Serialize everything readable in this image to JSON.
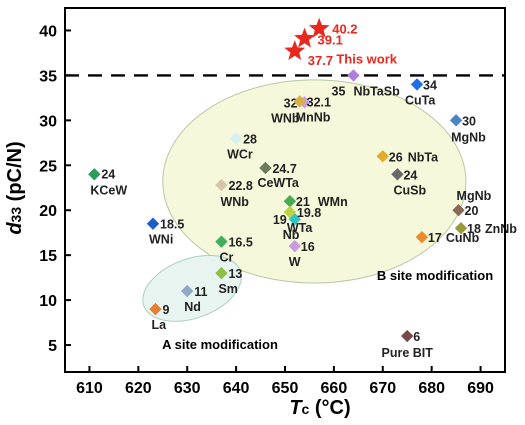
{
  "chart_data": {
    "type": "scatter",
    "x_axis": {
      "title_main": "T",
      "title_sub": "c",
      "title_unit": " (°C)",
      "range": [
        605,
        695
      ],
      "ticks": [
        610,
        620,
        630,
        640,
        650,
        660,
        670,
        680,
        690
      ]
    },
    "y_axis": {
      "title_main": "d",
      "title_sub": "33",
      "title_unit": " (pC/N)",
      "range": [
        2,
        42.5
      ],
      "ticks": [
        5,
        10,
        15,
        20,
        25,
        30,
        35,
        40
      ]
    },
    "reference_line": {
      "y": 35,
      "style": "dashed"
    },
    "regions": [
      {
        "label": "B site modification",
        "cx": 656,
        "cy": 23.2,
        "rx": 31,
        "ry": 11.3,
        "fill": "#f6f8dc",
        "stroke": "#b8c8a4"
      },
      {
        "label": "A site modification",
        "cx": 631,
        "cy": 11.3,
        "rx": 10.5,
        "ry": 3.3,
        "angle": -20,
        "fill": "#e8f4f0",
        "stroke": "#a9cfc4"
      }
    ],
    "points": [
      {
        "x": 611,
        "y": 24,
        "value": "24",
        "name": "KCeW",
        "color": "#2e9a5f"
      },
      {
        "x": 623,
        "y": 18.5,
        "value": "18.5",
        "name": "WNi",
        "color": "#1d5fc7"
      },
      {
        "x": 623.5,
        "y": 9,
        "value": "9",
        "name": "La",
        "color": "#e57f33"
      },
      {
        "x": 630,
        "y": 11,
        "value": "11",
        "name": "Nd",
        "color": "#8fa8c8"
      },
      {
        "x": 637,
        "y": 13,
        "value": "13",
        "name": "Sm",
        "color": "#8dc043"
      },
      {
        "x": 637,
        "y": 16.5,
        "value": "16.5",
        "name": "Cr",
        "color": "#3fae5e"
      },
      {
        "x": 637,
        "y": 22.8,
        "value": "22.8",
        "name": "WNb",
        "color": "#d8c4a8"
      },
      {
        "x": 640,
        "y": 28,
        "value": "28",
        "name": "WCr",
        "color": "#d4f0ef"
      },
      {
        "x": 646,
        "y": 24.7,
        "value": "24.7",
        "name": "CeWTa",
        "color": "#6d7a5b"
      },
      {
        "x": 652,
        "y": 19,
        "value": "19",
        "name": "Nb",
        "color": "#2fc4c4"
      },
      {
        "x": 651,
        "y": 21,
        "value": "21",
        "name": "WMn",
        "color": "#4aaa50"
      },
      {
        "x": 651,
        "y": 19.8,
        "value": "19.8",
        "name": "WTa",
        "color": "#bcd244"
      },
      {
        "x": 652,
        "y": 16,
        "value": "16",
        "name": "W",
        "color": "#c79be0"
      },
      {
        "x": 654,
        "y": 32,
        "value": "32",
        "name": "WNb",
        "color": "#c9a0dc"
      },
      {
        "x": 653,
        "y": 32.1,
        "value": "32.1",
        "name": "MnNb",
        "color": "#d9b049"
      },
      {
        "x": 664,
        "y": 35,
        "value": "35",
        "name": "NbTaSb",
        "color": "#b07ee0"
      },
      {
        "x": 670,
        "y": 26,
        "value": "26",
        "name": "NbTa",
        "color": "#e2ac2a"
      },
      {
        "x": 673,
        "y": 24,
        "value": "24",
        "name": "CuSb",
        "color": "#696969"
      },
      {
        "x": 677,
        "y": 34,
        "value": "34",
        "name": "CuTa",
        "color": "#1e6fe6"
      },
      {
        "x": 685,
        "y": 30,
        "value": "30",
        "name": "MgNb",
        "color": "#4b84c4"
      },
      {
        "x": 685.5,
        "y": 20,
        "value": "20",
        "name": "MgNb",
        "color": "#8a6a55"
      },
      {
        "x": 686,
        "y": 18,
        "value": "18",
        "name": "ZnNb",
        "color": "#9a9a3a"
      },
      {
        "x": 678,
        "y": 17,
        "value": "17",
        "name": "CuNb",
        "color": "#ea8a2a"
      },
      {
        "x": 675,
        "y": 6,
        "value": "6",
        "name": "Pure BIT",
        "color": "#7a4848"
      }
    ],
    "stars": {
      "label": "This work",
      "color": "#e8281e",
      "points": [
        {
          "x": 657,
          "y": 40.2,
          "value": "40.2"
        },
        {
          "x": 654,
          "y": 39.1,
          "value": "39.1"
        },
        {
          "x": 652,
          "y": 37.7,
          "value": "37.7"
        }
      ]
    }
  }
}
